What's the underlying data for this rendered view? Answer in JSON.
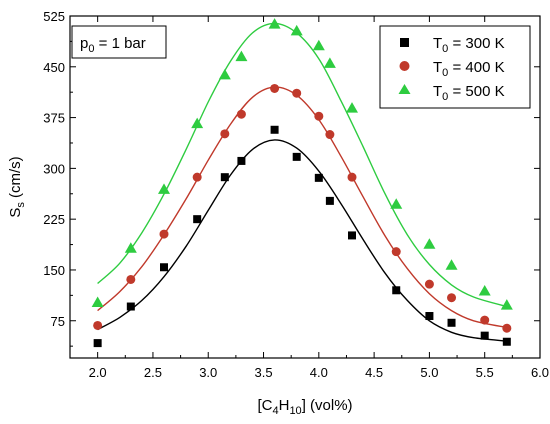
{
  "chart_data": {
    "type": "scatter",
    "annotation": {
      "main": "p",
      "sub": "0",
      "rest": " = 1 bar"
    },
    "xlabel": {
      "a": "[C",
      "s1": "4",
      "b": "H",
      "s2": "10",
      "c": "] (vol%)"
    },
    "ylabel": {
      "main": "S",
      "sub": "s",
      "rest": " (cm/s)"
    },
    "xlim": [
      1.75,
      6.0
    ],
    "ylim": [
      20,
      525
    ],
    "x_ticks": [
      2.0,
      2.5,
      3.0,
      3.5,
      4.0,
      4.5,
      5.0,
      5.5,
      6.0
    ],
    "x_tick_labels": [
      "2.0",
      "2.5",
      "3.0",
      "3.5",
      "4.0",
      "4.5",
      "5.0",
      "5.5",
      "6.0"
    ],
    "y_ticks": [
      75,
      150,
      225,
      300,
      375,
      450,
      525
    ],
    "y_tick_labels": [
      "75",
      "150",
      "225",
      "300",
      "375",
      "450",
      "525"
    ],
    "legend_position": "top-right",
    "grid": false,
    "series": [
      {
        "name": {
          "a": "T",
          "sub": "0",
          "rest": " = 300 K"
        },
        "marker": "square",
        "color": "#000000",
        "x": [
          2.0,
          2.3,
          2.6,
          2.9,
          3.15,
          3.3,
          3.6,
          3.8,
          4.0,
          4.1,
          4.3,
          4.7,
          5.0,
          5.2,
          5.5,
          5.7
        ],
        "y": [
          42,
          96,
          154,
          225,
          287,
          311,
          357,
          317,
          286,
          252,
          201,
          120,
          82,
          72,
          53,
          44
        ],
        "fit_x": [
          2.0,
          2.2,
          2.4,
          2.6,
          2.8,
          3.0,
          3.2,
          3.4,
          3.6,
          3.8,
          4.0,
          4.2,
          4.4,
          4.6,
          4.8,
          5.0,
          5.2,
          5.4,
          5.7
        ],
        "fit_y": [
          62,
          80,
          105,
          140,
          185,
          238,
          290,
          328,
          342,
          330,
          296,
          248,
          195,
          145,
          105,
          75,
          58,
          50,
          45
        ]
      },
      {
        "name": {
          "a": "T",
          "sub": "0",
          "rest": " = 400 K"
        },
        "marker": "circle",
        "color": "#c0392b",
        "x": [
          2.0,
          2.3,
          2.6,
          2.9,
          3.15,
          3.3,
          3.6,
          3.8,
          4.0,
          4.1,
          4.3,
          4.7,
          5.0,
          5.2,
          5.5,
          5.7
        ],
        "y": [
          68,
          136,
          203,
          287,
          351,
          380,
          418,
          411,
          377,
          350,
          287,
          177,
          129,
          109,
          76,
          64
        ],
        "fit_x": [
          2.0,
          2.2,
          2.4,
          2.6,
          2.8,
          3.0,
          3.2,
          3.4,
          3.6,
          3.8,
          4.0,
          4.2,
          4.4,
          4.6,
          4.8,
          5.0,
          5.2,
          5.4,
          5.7
        ],
        "fit_y": [
          90,
          118,
          155,
          202,
          255,
          312,
          365,
          405,
          420,
          408,
          372,
          318,
          258,
          200,
          152,
          115,
          90,
          75,
          65
        ]
      },
      {
        "name": {
          "a": "T",
          "sub": "0",
          "rest": " = 500 K"
        },
        "marker": "triangle",
        "color": "#2ecc40",
        "x": [
          2.0,
          2.3,
          2.6,
          2.9,
          3.15,
          3.3,
          3.6,
          3.8,
          4.0,
          4.1,
          4.3,
          4.7,
          5.0,
          5.2,
          5.5,
          5.7
        ],
        "y": [
          102,
          182,
          269,
          366,
          438,
          465,
          513,
          503,
          481,
          455,
          389,
          247,
          188,
          157,
          119,
          98
        ],
        "fit_x": [
          2.0,
          2.2,
          2.4,
          2.6,
          2.8,
          3.0,
          3.2,
          3.4,
          3.6,
          3.8,
          4.0,
          4.2,
          4.4,
          4.6,
          4.8,
          5.0,
          5.2,
          5.4,
          5.7
        ],
        "fit_y": [
          130,
          160,
          205,
          262,
          328,
          398,
          458,
          500,
          514,
          500,
          462,
          400,
          332,
          262,
          202,
          158,
          128,
          110,
          96
        ]
      }
    ]
  }
}
